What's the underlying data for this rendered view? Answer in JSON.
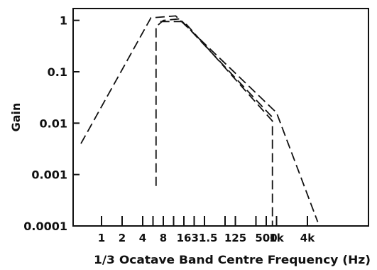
{
  "chart_data": {
    "type": "line",
    "xlabel": "1/3 Ocatave Band Centre Frequency (Hz)",
    "ylabel": "Gain",
    "y_scale": "log",
    "ylim": [
      0.0001,
      1.7
    ],
    "yticks": [
      {
        "value": 1,
        "label": "1"
      },
      {
        "value": 0.1,
        "label": "0.1"
      },
      {
        "value": 0.01,
        "label": "0.01"
      },
      {
        "value": 0.001,
        "label": "0.001"
      },
      {
        "value": 0.0001,
        "label": "0.0001"
      }
    ],
    "x_scale": "categorical (1/3-octave band index)",
    "xlim": [
      -3,
      23
    ],
    "xticks": [
      {
        "index": 0,
        "label": "1"
      },
      {
        "index": 2,
        "label": "2"
      },
      {
        "index": 4,
        "label": "4"
      },
      {
        "index": 5,
        "label": ""
      },
      {
        "index": 6,
        "label": "8"
      },
      {
        "index": 7,
        "label": ""
      },
      {
        "index": 8,
        "label": "16"
      },
      {
        "index": 9,
        "label": ""
      },
      {
        "index": 10,
        "label": "31.5"
      },
      {
        "index": 12,
        "label": ""
      },
      {
        "index": 13,
        "label": "125"
      },
      {
        "index": 15,
        "label": ""
      },
      {
        "index": 16,
        "label": "500"
      },
      {
        "index": 17,
        "label": "1k"
      },
      {
        "index": 20,
        "label": "4k"
      }
    ],
    "series": [
      {
        "points": [
          [
            -2.0,
            0.004
          ],
          [
            4.8,
            1.12
          ],
          [
            7.2,
            1.22
          ],
          [
            17.0,
            0.016
          ],
          [
            21.0,
            0.00012
          ]
        ]
      },
      {
        "points": [
          [
            5.3,
            0.0006
          ],
          [
            5.3,
            0.75
          ],
          [
            6.0,
            1.0
          ],
          [
            7.6,
            1.07
          ],
          [
            16.6,
            0.013
          ]
        ]
      },
      {
        "points": [
          [
            5.7,
            0.95
          ],
          [
            8.0,
            0.95
          ],
          [
            16.6,
            0.011
          ],
          [
            16.6,
            0.0001
          ]
        ]
      }
    ],
    "grid": false,
    "legend": "none"
  }
}
